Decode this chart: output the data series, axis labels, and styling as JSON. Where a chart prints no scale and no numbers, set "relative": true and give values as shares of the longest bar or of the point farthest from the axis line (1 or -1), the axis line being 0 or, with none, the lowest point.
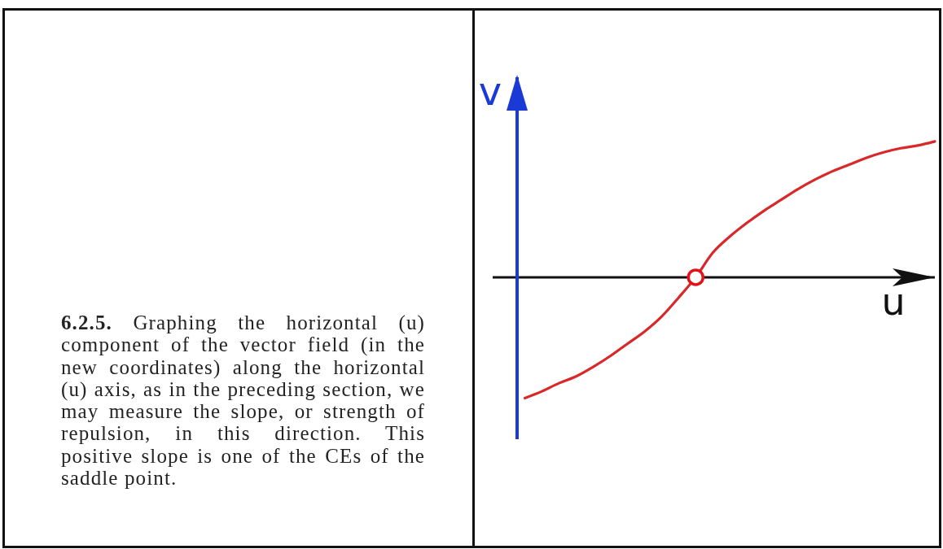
{
  "chart_data": {
    "type": "line",
    "relative": true,
    "xlabel": "u",
    "ylabel": "v",
    "categories": [
      null,
      null,
      null,
      null,
      null,
      null,
      null,
      null,
      null,
      null,
      null,
      null,
      null,
      null,
      null,
      null,
      null,
      null,
      null,
      null,
      null,
      null,
      null,
      null,
      null
    ],
    "series": [
      {
        "color": "#d8282a",
        "marker": "none",
        "values": [
          -0.89,
          -0.84,
          -0.78,
          -0.73,
          -0.66,
          -0.58,
          -0.49,
          -0.4,
          -0.29,
          -0.15,
          0,
          0.18,
          0.3,
          0.4,
          0.49,
          0.57,
          0.65,
          0.72,
          0.78,
          0.83,
          0.88,
          0.92,
          0.95,
          0.97,
          1
        ]
      },
      {
        "color": "#e3121a",
        "marker": "circle",
        "values": [
          null,
          null,
          null,
          null,
          null,
          null,
          null,
          null,
          null,
          null,
          0,
          null,
          null,
          null,
          null,
          null,
          null,
          null,
          null,
          null,
          null,
          null,
          null,
          null,
          null
        ]
      }
    ],
    "annotations": [
      "6.2.5. Graphing the horizontal (u) component of the vector field (in the new coordinates) along the horizontal (u) axis, as in the preceding section, we may measure the slope, or strength of repulsion, in this direction. This positive slope is one of the CEs of the saddle point."
    ]
  }
}
